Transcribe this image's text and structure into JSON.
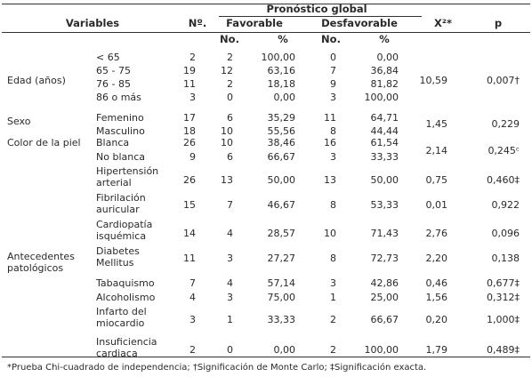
{
  "header": {
    "variables": "Variables",
    "n": "Nº.",
    "group": "Pronóstico global",
    "favorable": "Favorable",
    "desfavorable": "Desfavorable",
    "no_fav": "No.",
    "pct_fav": "%",
    "no_desf": "No.",
    "pct_desf": "%",
    "x2": "X²*",
    "p": "p"
  },
  "groups": [
    {
      "label": "Edad (años)",
      "stat": {
        "x2": "10,59",
        "p": "0,007†"
      }
    },
    {
      "label": "Sexo",
      "stat": {
        "x2": "1,45",
        "p": "0,229"
      }
    },
    {
      "label": "Color de la piel",
      "stat": {
        "x2": "2,14",
        "p": "0,245ᶜ"
      }
    },
    {
      "label": "Antecedentes patológicos"
    }
  ],
  "rows": [
    {
      "category": "< 65",
      "n": "2",
      "fav_no": "2",
      "fav_pct": "100,00",
      "desf_no": "0",
      "desf_pct": "0,00"
    },
    {
      "category": "65 - 75",
      "n": "19",
      "fav_no": "12",
      "fav_pct": "63,16",
      "desf_no": "7",
      "desf_pct": "36,84"
    },
    {
      "category": "76 - 85",
      "n": "11",
      "fav_no": "2",
      "fav_pct": "18,18",
      "desf_no": "9",
      "desf_pct": "81,82"
    },
    {
      "category": "86 o más",
      "n": "3",
      "fav_no": "0",
      "fav_pct": "0,00",
      "desf_no": "3",
      "desf_pct": "100,00"
    },
    {
      "category": "Femenino",
      "n": "17",
      "fav_no": "6",
      "fav_pct": "35,29",
      "desf_no": "11",
      "desf_pct": "64,71"
    },
    {
      "category": "Masculino",
      "n": "18",
      "fav_no": "10",
      "fav_pct": "55,56",
      "desf_no": "8",
      "desf_pct": "44,44"
    },
    {
      "category": "Blanca",
      "n": "26",
      "fav_no": "10",
      "fav_pct": "38,46",
      "desf_no": "16",
      "desf_pct": "61,54"
    },
    {
      "category": "No blanca",
      "n": "9",
      "fav_no": "6",
      "fav_pct": "66,67",
      "desf_no": "3",
      "desf_pct": "33,33"
    },
    {
      "category": "Hipertensión arterial",
      "n": "26",
      "fav_no": "13",
      "fav_pct": "50,00",
      "desf_no": "13",
      "desf_pct": "50,00",
      "x2": "0,75",
      "p": "0,460‡"
    },
    {
      "category": "Fibrilación auricular",
      "n": "15",
      "fav_no": "7",
      "fav_pct": "46,67",
      "desf_no": "8",
      "desf_pct": "53,33",
      "x2": "0,01",
      "p": "0,922"
    },
    {
      "category": "Cardiopatía isquémica",
      "n": "14",
      "fav_no": "4",
      "fav_pct": "28,57",
      "desf_no": "10",
      "desf_pct": "71,43",
      "x2": "2,76",
      "p": "0,096"
    },
    {
      "category": "Diabetes Mellitus",
      "n": "11",
      "fav_no": "3",
      "fav_pct": "27,27",
      "desf_no": "8",
      "desf_pct": "72,73",
      "x2": "2,20",
      "p": "0,138"
    },
    {
      "category": "Tabaquismo",
      "n": "7",
      "fav_no": "4",
      "fav_pct": "57,14",
      "desf_no": "3",
      "desf_pct": "42,86",
      "x2": "0,46",
      "p": "0,677‡"
    },
    {
      "category": "Alcoholismo",
      "n": "4",
      "fav_no": "3",
      "fav_pct": "75,00",
      "desf_no": "1",
      "desf_pct": "25,00",
      "x2": "1,56",
      "p": "0,312‡"
    },
    {
      "category": "Infarto del miocardio",
      "n": "3",
      "fav_no": "1",
      "fav_pct": "33,33",
      "desf_no": "2",
      "desf_pct": "66,67",
      "x2": "0,20",
      "p": "1,000‡"
    },
    {
      "category": "Insuficiencia cardiaca",
      "n": "2",
      "fav_no": "0",
      "fav_pct": "0,00",
      "desf_no": "2",
      "desf_pct": "100,00",
      "x2": "1,79",
      "p": "0,489‡"
    }
  ],
  "footnote": "*Prueba Chi-cuadrado de independencia; †Significación de Monte Carlo; ‡Significación exacta."
}
